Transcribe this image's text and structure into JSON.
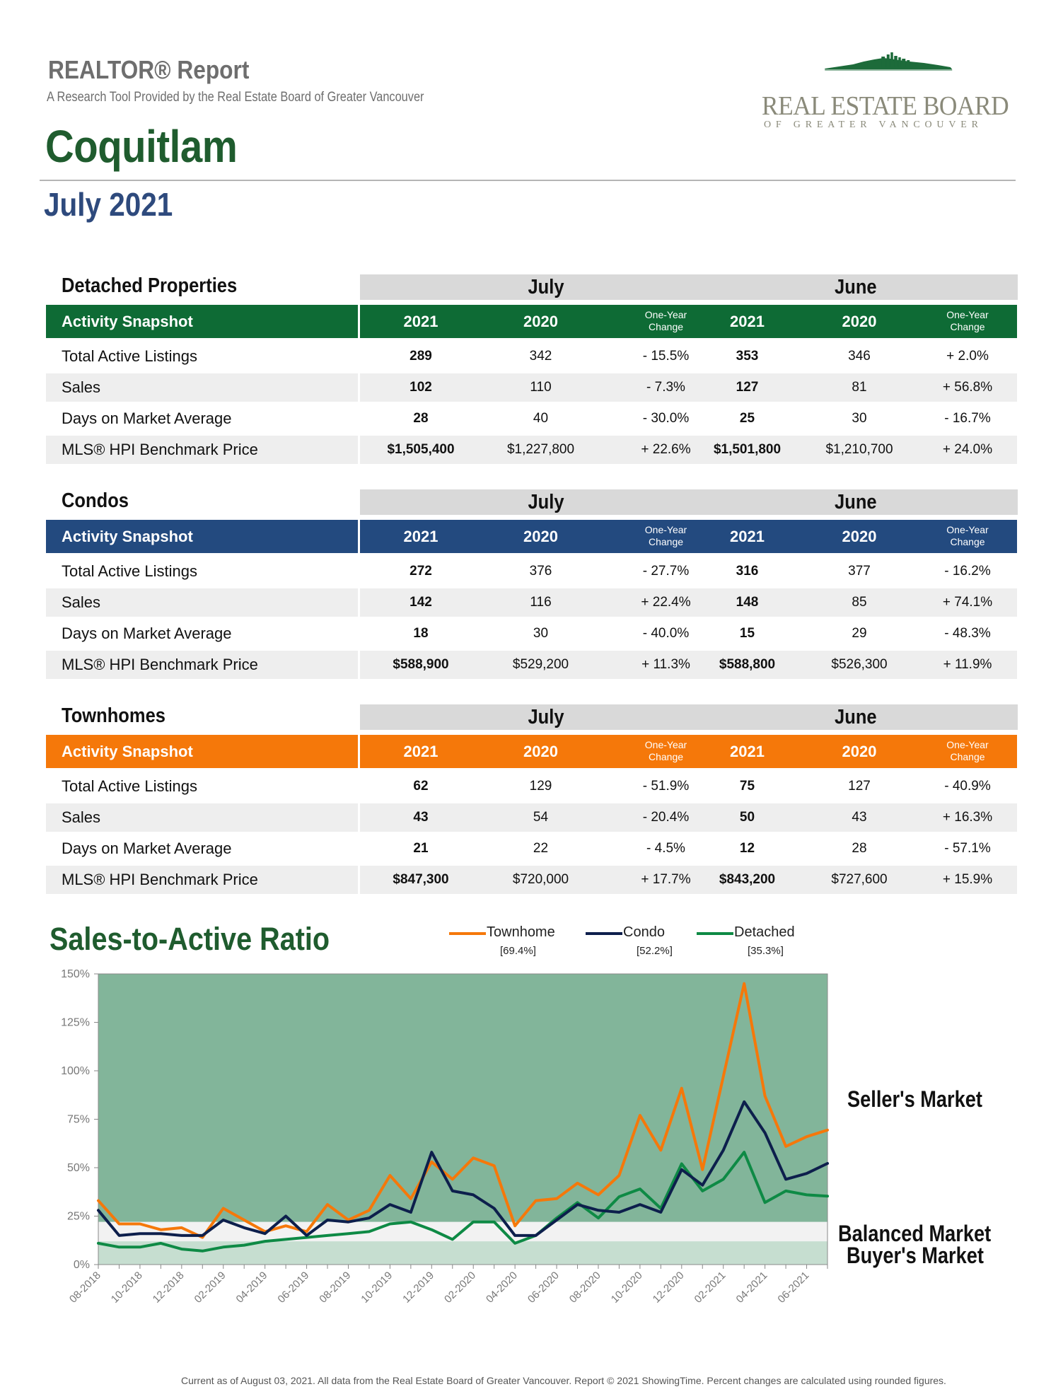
{
  "header": {
    "report_title": "REALTOR® Report",
    "subtitle": "A Research Tool Provided by the Real Estate Board of Greater Vancouver",
    "area": "Coquitlam",
    "period": "July 2021",
    "logo_name": "REAL ESTATE BOARD",
    "logo_sub": "OF GREATER VANCOUVER"
  },
  "colors": {
    "detached": "#0e6b35",
    "condo": "#234a7f",
    "townhome": "#f5780a",
    "chart_bg": "#82b59a"
  },
  "tables": [
    {
      "title": "Detached Properties",
      "header_color": "#0e6b35",
      "snapshot_label": "Activity Snapshot",
      "month1": "July",
      "month2": "June",
      "year1": "2021",
      "year2": "2020",
      "change_label_1": "One-Year",
      "change_label_2": "Change",
      "rows": [
        {
          "label": "Total Active Listings",
          "m1_2021": "289",
          "m1_2020": "342",
          "m1_chg": "- 15.5%",
          "m2_2021": "353",
          "m2_2020": "346",
          "m2_chg": "+ 2.0%"
        },
        {
          "label": "Sales",
          "m1_2021": "102",
          "m1_2020": "110",
          "m1_chg": "- 7.3%",
          "m2_2021": "127",
          "m2_2020": "81",
          "m2_chg": "+ 56.8%"
        },
        {
          "label": "Days on Market Average",
          "m1_2021": "28",
          "m1_2020": "40",
          "m1_chg": "- 30.0%",
          "m2_2021": "25",
          "m2_2020": "30",
          "m2_chg": "- 16.7%"
        },
        {
          "label": "MLS® HPI Benchmark Price",
          "m1_2021": "$1,505,400",
          "m1_2020": "$1,227,800",
          "m1_chg": "+ 22.6%",
          "m2_2021": "$1,501,800",
          "m2_2020": "$1,210,700",
          "m2_chg": "+ 24.0%"
        }
      ]
    },
    {
      "title": "Condos",
      "header_color": "#234a7f",
      "snapshot_label": "Activity Snapshot",
      "month1": "July",
      "month2": "June",
      "year1": "2021",
      "year2": "2020",
      "change_label_1": "One-Year",
      "change_label_2": "Change",
      "rows": [
        {
          "label": "Total Active Listings",
          "m1_2021": "272",
          "m1_2020": "376",
          "m1_chg": "- 27.7%",
          "m2_2021": "316",
          "m2_2020": "377",
          "m2_chg": "- 16.2%"
        },
        {
          "label": "Sales",
          "m1_2021": "142",
          "m1_2020": "116",
          "m1_chg": "+ 22.4%",
          "m2_2021": "148",
          "m2_2020": "85",
          "m2_chg": "+ 74.1%"
        },
        {
          "label": "Days on Market Average",
          "m1_2021": "18",
          "m1_2020": "30",
          "m1_chg": "- 40.0%",
          "m2_2021": "15",
          "m2_2020": "29",
          "m2_chg": "- 48.3%"
        },
        {
          "label": "MLS® HPI Benchmark Price",
          "m1_2021": "$588,900",
          "m1_2020": "$529,200",
          "m1_chg": "+ 11.3%",
          "m2_2021": "$588,800",
          "m2_2020": "$526,300",
          "m2_chg": "+ 11.9%"
        }
      ]
    },
    {
      "title": "Townhomes",
      "header_color": "#f5780a",
      "snapshot_label": "Activity Snapshot",
      "month1": "July",
      "month2": "June",
      "year1": "2021",
      "year2": "2020",
      "change_label_1": "One-Year",
      "change_label_2": "Change",
      "rows": [
        {
          "label": "Total Active Listings",
          "m1_2021": "62",
          "m1_2020": "129",
          "m1_chg": "- 51.9%",
          "m2_2021": "75",
          "m2_2020": "127",
          "m2_chg": "- 40.9%"
        },
        {
          "label": "Sales",
          "m1_2021": "43",
          "m1_2020": "54",
          "m1_chg": "- 20.4%",
          "m2_2021": "50",
          "m2_2020": "43",
          "m2_chg": "+ 16.3%"
        },
        {
          "label": "Days on Market Average",
          "m1_2021": "21",
          "m1_2020": "22",
          "m1_chg": "- 4.5%",
          "m2_2021": "12",
          "m2_2020": "28",
          "m2_chg": "- 57.1%"
        },
        {
          "label": "MLS® HPI Benchmark Price",
          "m1_2021": "$847,300",
          "m1_2020": "$720,000",
          "m1_chg": "+ 17.7%",
          "m2_2021": "$843,200",
          "m2_2020": "$727,600",
          "m2_chg": "+ 15.9%"
        }
      ]
    }
  ],
  "chart_data": {
    "type": "line",
    "title": "Sales-to-Active Ratio",
    "x": [
      "08-2018",
      "09-2018",
      "10-2018",
      "11-2018",
      "12-2018",
      "01-2019",
      "02-2019",
      "03-2019",
      "04-2019",
      "05-2019",
      "06-2019",
      "07-2019",
      "08-2019",
      "09-2019",
      "10-2019",
      "11-2019",
      "12-2019",
      "01-2020",
      "02-2020",
      "03-2020",
      "04-2020",
      "05-2020",
      "06-2020",
      "07-2020",
      "08-2020",
      "09-2020",
      "10-2020",
      "11-2020",
      "12-2020",
      "01-2021",
      "02-2021",
      "03-2021",
      "04-2021",
      "05-2021",
      "06-2021",
      "07-2021"
    ],
    "xtick_labels": [
      "08-2018",
      "10-2018",
      "12-2018",
      "02-2019",
      "04-2019",
      "06-2019",
      "08-2019",
      "10-2019",
      "12-2019",
      "02-2020",
      "04-2020",
      "06-2020",
      "08-2020",
      "10-2020",
      "12-2020",
      "02-2021",
      "04-2021",
      "06-2021"
    ],
    "ylim": [
      0,
      150
    ],
    "yticks": [
      "0%",
      "25%",
      "50%",
      "75%",
      "100%",
      "125%",
      "150%"
    ],
    "zones": {
      "buyers_max": 12,
      "balanced_max": 22
    },
    "series": [
      {
        "name": "Townhome",
        "legend_value": "[69.4%]",
        "color": "#f5780a",
        "values": [
          33,
          21,
          21,
          18,
          19,
          14,
          29,
          23,
          17,
          20,
          17,
          31,
          23,
          28,
          46,
          34,
          53,
          44,
          55,
          51,
          20,
          33,
          34,
          42,
          36,
          46,
          77,
          59,
          91,
          49,
          97,
          145,
          87,
          61,
          66,
          69.4
        ]
      },
      {
        "name": "Condo",
        "legend_value": "[52.2%]",
        "color": "#0d1f4c",
        "values": [
          28,
          15,
          16,
          16,
          15,
          15,
          23,
          19,
          16,
          25,
          15,
          23,
          22,
          24,
          31,
          27,
          58,
          38,
          36,
          29,
          15,
          15,
          23,
          31,
          28,
          27,
          31,
          27,
          49,
          41,
          59,
          84,
          68,
          44,
          47,
          52.2
        ]
      },
      {
        "name": "Detached",
        "legend_value": "[35.3%]",
        "color": "#0e8a45",
        "values": [
          11,
          9,
          9,
          11,
          8,
          7,
          9,
          10,
          12,
          13,
          14,
          15,
          16,
          17,
          21,
          22,
          18,
          13,
          22,
          22,
          11,
          15,
          24,
          32,
          24,
          35,
          39,
          29,
          52,
          38,
          44,
          58,
          32,
          38,
          36,
          35.3
        ]
      }
    ],
    "annotations": [
      "Seller's Market",
      "Balanced Market",
      "Buyer's Market"
    ]
  },
  "footer": "Current as of August 03, 2021. All data from the Real Estate Board of Greater Vancouver. Report © 2021 ShowingTime. Percent changes are calculated using rounded figures."
}
